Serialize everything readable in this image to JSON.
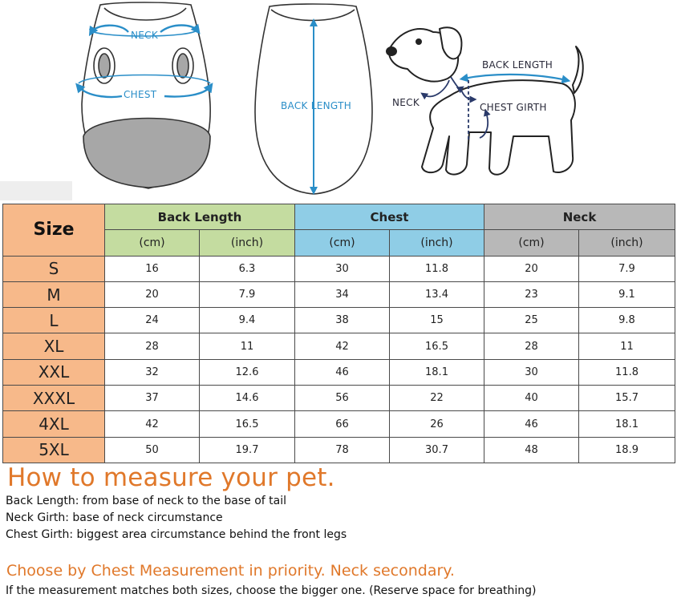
{
  "illustration": {
    "neck_label": "NECK",
    "chest_label": "CHEST",
    "back_length_label": "BACK LENGTH",
    "dog_back_length_label": "BACK LENGTH",
    "dog_neck_label": "NECK",
    "dog_chest_girth_label": "CHEST GIRTH",
    "accent_color": "#2a8ec8"
  },
  "table": {
    "size_header": "Size",
    "groups": [
      {
        "label": "Back Length",
        "color": "#c4dca0"
      },
      {
        "label": "Chest",
        "color": "#8fcde6"
      },
      {
        "label": "Neck",
        "color": "#b8b8b8"
      }
    ],
    "units": [
      "(cm)",
      "(inch)",
      "(cm)",
      "(inch)",
      "(cm)",
      "(inch)"
    ],
    "rows": [
      {
        "size": "S",
        "values": [
          "16",
          "6.3",
          "30",
          "11.8",
          "20",
          "7.9"
        ]
      },
      {
        "size": "M",
        "values": [
          "20",
          "7.9",
          "34",
          "13.4",
          "23",
          "9.1"
        ]
      },
      {
        "size": "L",
        "values": [
          "24",
          "9.4",
          "38",
          "15",
          "25",
          "9.8"
        ]
      },
      {
        "size": "XL",
        "values": [
          "28",
          "11",
          "42",
          "16.5",
          "28",
          "11"
        ]
      },
      {
        "size": "XXL",
        "values": [
          "32",
          "12.6",
          "46",
          "18.1",
          "30",
          "11.8"
        ]
      },
      {
        "size": "XXXL",
        "values": [
          "37",
          "14.6",
          "56",
          "22",
          "40",
          "15.7"
        ]
      },
      {
        "size": "4XL",
        "values": [
          "42",
          "16.5",
          "66",
          "26",
          "46",
          "18.1"
        ]
      },
      {
        "size": "5XL",
        "values": [
          "50",
          "19.7",
          "78",
          "30.7",
          "48",
          "18.9"
        ]
      }
    ]
  },
  "howto": {
    "title": "How to measure your pet.",
    "lines": [
      "Back Length: from base of neck to the base of tail",
      "Neck Girth: base of neck circumstance",
      "Chest Girth: biggest area circumstance behind the front legs"
    ],
    "choose": "Choose by Chest Measurement in priority. Neck secondary.",
    "note": "If the measurement matches both sizes, choose the bigger one. (Reserve space for breathing)"
  }
}
